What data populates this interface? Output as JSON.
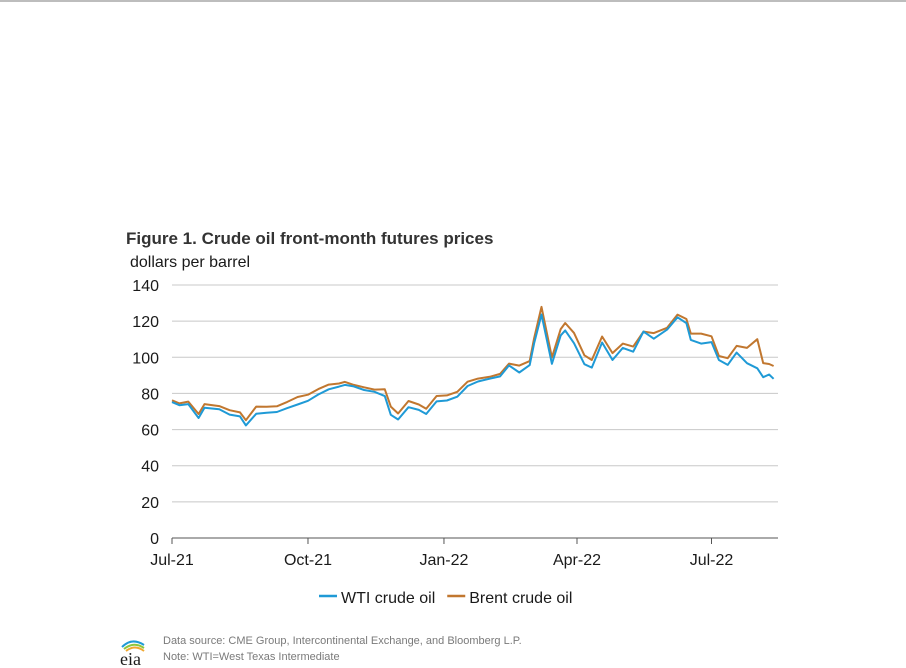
{
  "figure": {
    "title": "Figure 1. Crude oil front-month futures prices",
    "unit_label": "dollars per barrel",
    "source_line": "Data source: CME Group, Intercontinental Exchange, and Bloomberg L.P.",
    "note_line": "Note: WTI=West Texas Intermediate",
    "logo_text": "eia"
  },
  "colors": {
    "wti": "#1f9ad6",
    "brent": "#c1772f",
    "grid": "#c8c8c8",
    "axis": "#555555",
    "text": "#1a1a1a"
  },
  "chart_data": {
    "type": "line",
    "title": "Figure 1. Crude oil front-month futures prices",
    "ylabel": "dollars per barrel",
    "xlabel": "",
    "x_axis_type": "date",
    "xlim": [
      "2021-07-01",
      "2022-08-15"
    ],
    "ylim": [
      0,
      140
    ],
    "yticks": [
      0,
      20,
      40,
      60,
      80,
      100,
      120,
      140
    ],
    "xticks": [
      {
        "date": "2021-07-01",
        "label": "Jul-21"
      },
      {
        "date": "2021-10-01",
        "label": "Oct-21"
      },
      {
        "date": "2022-01-01",
        "label": "Jan-22"
      },
      {
        "date": "2022-04-01",
        "label": "Apr-22"
      },
      {
        "date": "2022-07-01",
        "label": "Jul-22"
      }
    ],
    "grid": true,
    "legend_position": "bottom-center",
    "series": [
      {
        "name": "WTI crude oil",
        "color": "#1f9ad6",
        "points": [
          [
            "2021-07-01",
            75.2
          ],
          [
            "2021-07-06",
            73.5
          ],
          [
            "2021-07-12",
            74.1
          ],
          [
            "2021-07-19",
            66.4
          ],
          [
            "2021-07-23",
            72.1
          ],
          [
            "2021-08-02",
            71.3
          ],
          [
            "2021-08-09",
            68.3
          ],
          [
            "2021-08-16",
            67.3
          ],
          [
            "2021-08-20",
            62.3
          ],
          [
            "2021-08-27",
            68.7
          ],
          [
            "2021-09-03",
            69.3
          ],
          [
            "2021-09-10",
            69.7
          ],
          [
            "2021-09-17",
            71.9
          ],
          [
            "2021-09-24",
            73.9
          ],
          [
            "2021-10-01",
            75.9
          ],
          [
            "2021-10-08",
            79.4
          ],
          [
            "2021-10-15",
            82.3
          ],
          [
            "2021-10-22",
            83.8
          ],
          [
            "2021-10-26",
            84.7
          ],
          [
            "2021-11-01",
            83.9
          ],
          [
            "2021-11-08",
            81.9
          ],
          [
            "2021-11-15",
            80.9
          ],
          [
            "2021-11-22",
            78.5
          ],
          [
            "2021-11-26",
            68.2
          ],
          [
            "2021-12-01",
            65.6
          ],
          [
            "2021-12-08",
            72.4
          ],
          [
            "2021-12-15",
            70.9
          ],
          [
            "2021-12-20",
            68.6
          ],
          [
            "2021-12-27",
            75.6
          ],
          [
            "2022-01-03",
            76.1
          ],
          [
            "2022-01-10",
            78.2
          ],
          [
            "2022-01-17",
            84.1
          ],
          [
            "2022-01-24",
            86.6
          ],
          [
            "2022-02-01",
            88.2
          ],
          [
            "2022-02-08",
            89.4
          ],
          [
            "2022-02-14",
            95.5
          ],
          [
            "2022-02-21",
            91.6
          ],
          [
            "2022-02-28",
            95.7
          ],
          [
            "2022-03-03",
            107.7
          ],
          [
            "2022-03-08",
            123.7
          ],
          [
            "2022-03-15",
            96.4
          ],
          [
            "2022-03-21",
            112.1
          ],
          [
            "2022-03-24",
            114.9
          ],
          [
            "2022-03-30",
            107.8
          ],
          [
            "2022-04-06",
            96.2
          ],
          [
            "2022-04-11",
            94.3
          ],
          [
            "2022-04-18",
            108.2
          ],
          [
            "2022-04-25",
            98.5
          ],
          [
            "2022-05-02",
            105.2
          ],
          [
            "2022-05-09",
            103.1
          ],
          [
            "2022-05-16",
            114.2
          ],
          [
            "2022-05-23",
            110.3
          ],
          [
            "2022-06-01",
            115.3
          ],
          [
            "2022-06-08",
            122.1
          ],
          [
            "2022-06-14",
            118.9
          ],
          [
            "2022-06-17",
            109.6
          ],
          [
            "2022-06-24",
            107.6
          ],
          [
            "2022-07-01",
            108.4
          ],
          [
            "2022-07-06",
            98.5
          ],
          [
            "2022-07-12",
            95.8
          ],
          [
            "2022-07-18",
            102.6
          ],
          [
            "2022-07-25",
            96.7
          ],
          [
            "2022-08-01",
            93.9
          ],
          [
            "2022-08-05",
            89.0
          ],
          [
            "2022-08-09",
            90.5
          ],
          [
            "2022-08-12",
            88.1
          ]
        ]
      },
      {
        "name": "Brent crude oil",
        "color": "#c1772f",
        "points": [
          [
            "2021-07-01",
            76.2
          ],
          [
            "2021-07-06",
            74.5
          ],
          [
            "2021-07-12",
            75.5
          ],
          [
            "2021-07-19",
            68.6
          ],
          [
            "2021-07-23",
            74.1
          ],
          [
            "2021-08-02",
            73.0
          ],
          [
            "2021-08-09",
            70.7
          ],
          [
            "2021-08-16",
            69.5
          ],
          [
            "2021-08-20",
            65.2
          ],
          [
            "2021-08-27",
            72.7
          ],
          [
            "2021-09-03",
            72.6
          ],
          [
            "2021-09-10",
            72.9
          ],
          [
            "2021-09-17",
            75.3
          ],
          [
            "2021-09-24",
            78.0
          ],
          [
            "2021-10-01",
            79.3
          ],
          [
            "2021-10-08",
            82.4
          ],
          [
            "2021-10-15",
            84.9
          ],
          [
            "2021-10-22",
            85.5
          ],
          [
            "2021-10-26",
            86.4
          ],
          [
            "2021-11-01",
            84.7
          ],
          [
            "2021-11-08",
            83.4
          ],
          [
            "2021-11-15",
            82.1
          ],
          [
            "2021-11-22",
            82.3
          ],
          [
            "2021-11-26",
            72.7
          ],
          [
            "2021-12-01",
            68.9
          ],
          [
            "2021-12-08",
            75.8
          ],
          [
            "2021-12-15",
            73.9
          ],
          [
            "2021-12-20",
            71.5
          ],
          [
            "2021-12-27",
            78.6
          ],
          [
            "2022-01-03",
            78.9
          ],
          [
            "2022-01-10",
            80.9
          ],
          [
            "2022-01-17",
            86.5
          ],
          [
            "2022-01-24",
            88.2
          ],
          [
            "2022-02-01",
            89.2
          ],
          [
            "2022-02-08",
            90.8
          ],
          [
            "2022-02-14",
            96.5
          ],
          [
            "2022-02-21",
            95.4
          ],
          [
            "2022-02-28",
            97.9
          ],
          [
            "2022-03-03",
            110.5
          ],
          [
            "2022-03-08",
            127.9
          ],
          [
            "2022-03-15",
            99.9
          ],
          [
            "2022-03-21",
            115.6
          ],
          [
            "2022-03-24",
            119.0
          ],
          [
            "2022-03-30",
            113.5
          ],
          [
            "2022-04-06",
            101.1
          ],
          [
            "2022-04-11",
            98.5
          ],
          [
            "2022-04-18",
            111.5
          ],
          [
            "2022-04-25",
            102.3
          ],
          [
            "2022-05-02",
            107.6
          ],
          [
            "2022-05-09",
            105.9
          ],
          [
            "2022-05-16",
            114.2
          ],
          [
            "2022-05-23",
            113.4
          ],
          [
            "2022-06-01",
            116.3
          ],
          [
            "2022-06-08",
            123.6
          ],
          [
            "2022-06-14",
            121.2
          ],
          [
            "2022-06-17",
            113.1
          ],
          [
            "2022-06-24",
            113.1
          ],
          [
            "2022-07-01",
            111.6
          ],
          [
            "2022-07-06",
            100.7
          ],
          [
            "2022-07-12",
            99.5
          ],
          [
            "2022-07-18",
            106.3
          ],
          [
            "2022-07-25",
            105.2
          ],
          [
            "2022-08-01",
            110.0
          ],
          [
            "2022-08-05",
            96.8
          ],
          [
            "2022-08-09",
            96.3
          ],
          [
            "2022-08-12",
            95.2
          ]
        ]
      }
    ]
  }
}
